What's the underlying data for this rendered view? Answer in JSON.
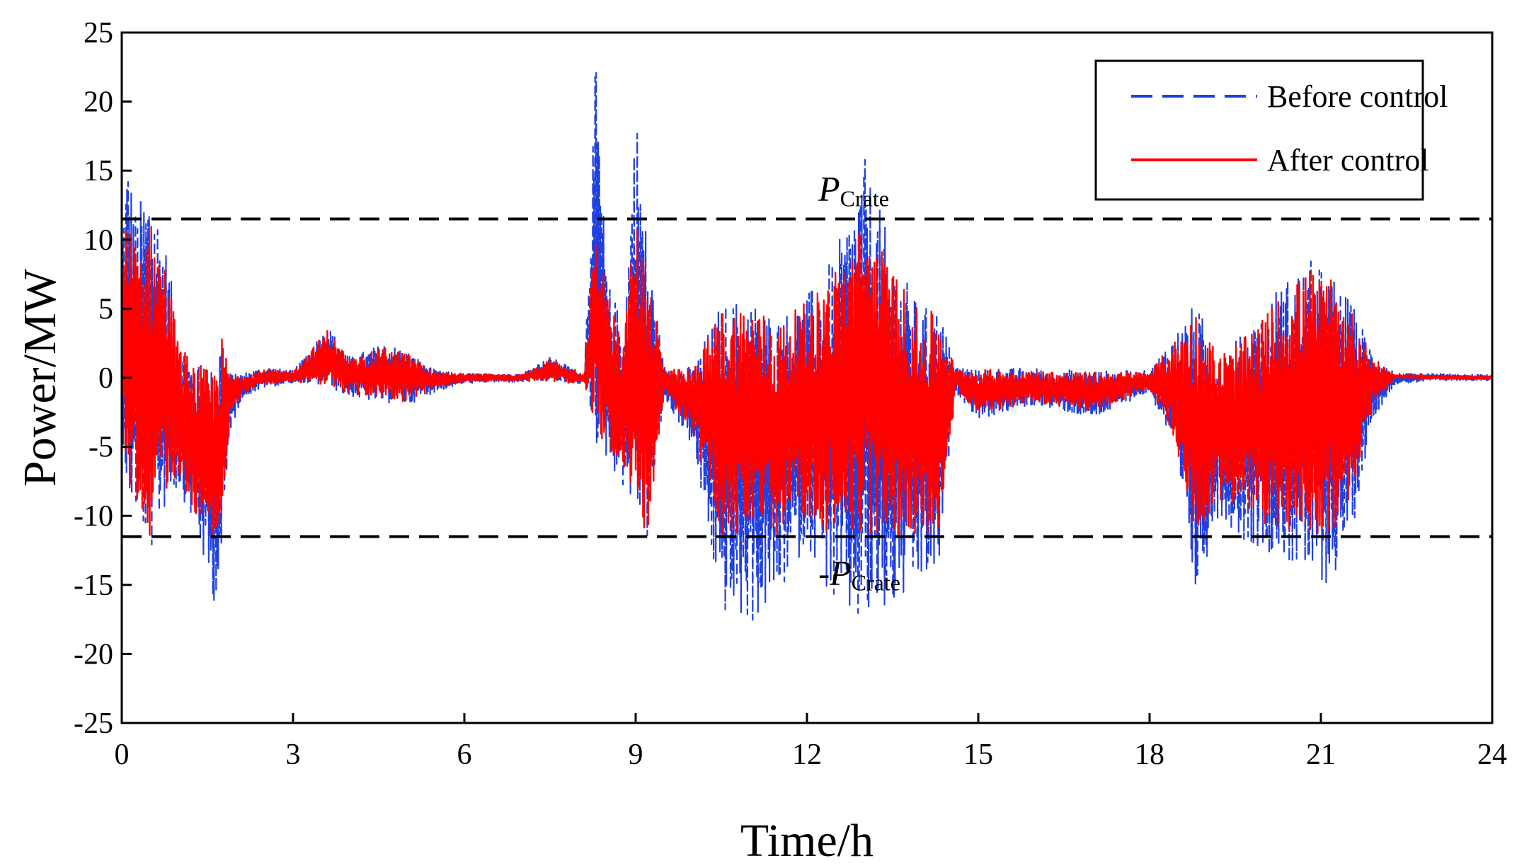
{
  "chart_data": {
    "type": "line",
    "xlabel": "Time/h",
    "ylabel": "Power/MW",
    "xlim": [
      0,
      24
    ],
    "ylim": [
      -25,
      25
    ],
    "xticks": [
      0,
      3,
      6,
      9,
      12,
      15,
      18,
      21,
      24
    ],
    "yticks": [
      -25,
      -20,
      -15,
      -10,
      -5,
      0,
      5,
      10,
      15,
      20,
      25
    ],
    "grid": false,
    "legend_position": "top-right",
    "rated_limit": 11.5,
    "annotations": [
      {
        "prefix": "",
        "symbol": "P",
        "subscript": "Crate",
        "y": 11.5
      },
      {
        "prefix": "-",
        "symbol": "P",
        "subscript": "Crate",
        "y": -11.5
      }
    ],
    "series": [
      {
        "name": "Before control",
        "style": "dashed",
        "color": "#2040e0",
        "envelope": {
          "x": [
            0,
            0.1,
            0.25,
            0.5,
            0.8,
            1.0,
            1.3,
            1.6,
            1.75,
            1.9,
            2.1,
            2.5,
            3,
            3.6,
            4.0,
            4.6,
            5.0,
            5.5,
            6,
            7,
            7.5,
            8.1,
            8.3,
            8.5,
            8.8,
            9.0,
            9.2,
            9.5,
            10,
            10.5,
            11,
            11.5,
            12,
            12.5,
            13.0,
            13.5,
            14,
            14.3,
            14.6,
            15,
            16,
            17,
            18,
            18.4,
            18.8,
            19.2,
            19.7,
            20.3,
            20.8,
            21.2,
            21.6,
            21.9,
            22.3,
            23,
            24
          ],
          "upper": [
            11,
            16.5,
            12,
            15,
            9,
            3,
            1,
            0.8,
            4,
            0.5,
            0.3,
            0.8,
            0.5,
            3.8,
            1.5,
            2.5,
            2,
            0.5,
            0.3,
            0.3,
            1.5,
            0.3,
            23,
            7,
            4,
            20,
            10,
            0.8,
            0.8,
            5.5,
            6,
            4.5,
            6,
            9,
            16,
            9,
            5,
            5.5,
            0.8,
            0.7,
            0.7,
            0.5,
            0.5,
            3,
            5.5,
            2,
            3.5,
            7,
            8.5,
            7.5,
            5,
            2,
            0.3,
            0.3,
            0.2
          ],
          "lower": [
            -3,
            -9.5,
            -10,
            -13,
            -9,
            -8,
            -11,
            -16.5,
            -14,
            -4,
            -1.5,
            -0.7,
            -0.4,
            -0.6,
            -1.5,
            -1.8,
            -2,
            -1,
            -0.4,
            -0.3,
            -0.3,
            -0.5,
            -5,
            -6,
            -8,
            -10,
            -12,
            -1.5,
            -5,
            -17,
            -18,
            -16,
            -12,
            -17,
            -18.5,
            -17,
            -15,
            -14.5,
            -1,
            -3,
            -2,
            -3,
            -1,
            -5,
            -16,
            -10,
            -12,
            -13,
            -15,
            -15,
            -10,
            -3,
            -0.5,
            -0.2,
            -0.2
          ]
        }
      },
      {
        "name": "After control",
        "style": "solid",
        "color": "#ff0000",
        "envelope": {
          "x": [
            0,
            0.1,
            0.25,
            0.5,
            0.8,
            1.0,
            1.3,
            1.6,
            1.75,
            1.9,
            2.1,
            2.5,
            3,
            3.6,
            4.0,
            4.6,
            5.0,
            5.5,
            6,
            7,
            7.5,
            8.1,
            8.3,
            8.5,
            8.8,
            9.0,
            9.2,
            9.5,
            10,
            10.5,
            11,
            11.5,
            12,
            12.5,
            13.0,
            13.5,
            14,
            14.3,
            14.6,
            15,
            16,
            17,
            18,
            18.4,
            18.8,
            19.2,
            19.7,
            20.3,
            20.8,
            21.2,
            21.6,
            21.9,
            22.3,
            23,
            24
          ],
          "upper": [
            9,
            11.5,
            10,
            11.5,
            8,
            2.5,
            1,
            0.5,
            3,
            0.3,
            0.2,
            0.6,
            0.4,
            3.5,
            1.3,
            2.2,
            1.8,
            0.4,
            0.3,
            0.2,
            1.3,
            0.2,
            11.5,
            6,
            3.5,
            11.5,
            9,
            0.6,
            0.6,
            5,
            5.5,
            4,
            5.5,
            8,
            11.5,
            8,
            4.5,
            5,
            0.6,
            0.6,
            0.5,
            0.4,
            0.4,
            2.5,
            5,
            1.8,
            3,
            6,
            8,
            7,
            4.5,
            1.5,
            0.2,
            0.2,
            0.1
          ],
          "lower": [
            -2.5,
            -8,
            -9,
            -11.5,
            -8,
            -7,
            -10,
            -11.5,
            -11.5,
            -3,
            -1.2,
            -0.5,
            -0.3,
            -0.5,
            -1.2,
            -1.5,
            -1.8,
            -0.8,
            -0.3,
            -0.2,
            -0.2,
            -0.4,
            -4,
            -5,
            -7,
            -9,
            -11.5,
            -1.2,
            -4,
            -11.5,
            -11.5,
            -11.5,
            -10,
            -11.5,
            -11.5,
            -11.5,
            -11.5,
            -11.5,
            -0.8,
            -2.5,
            -1.8,
            -2.5,
            -0.8,
            -4,
            -11.5,
            -9,
            -10,
            -11,
            -11.5,
            -11.5,
            -8,
            -2,
            0,
            -0.1,
            -0.1
          ]
        }
      }
    ]
  }
}
